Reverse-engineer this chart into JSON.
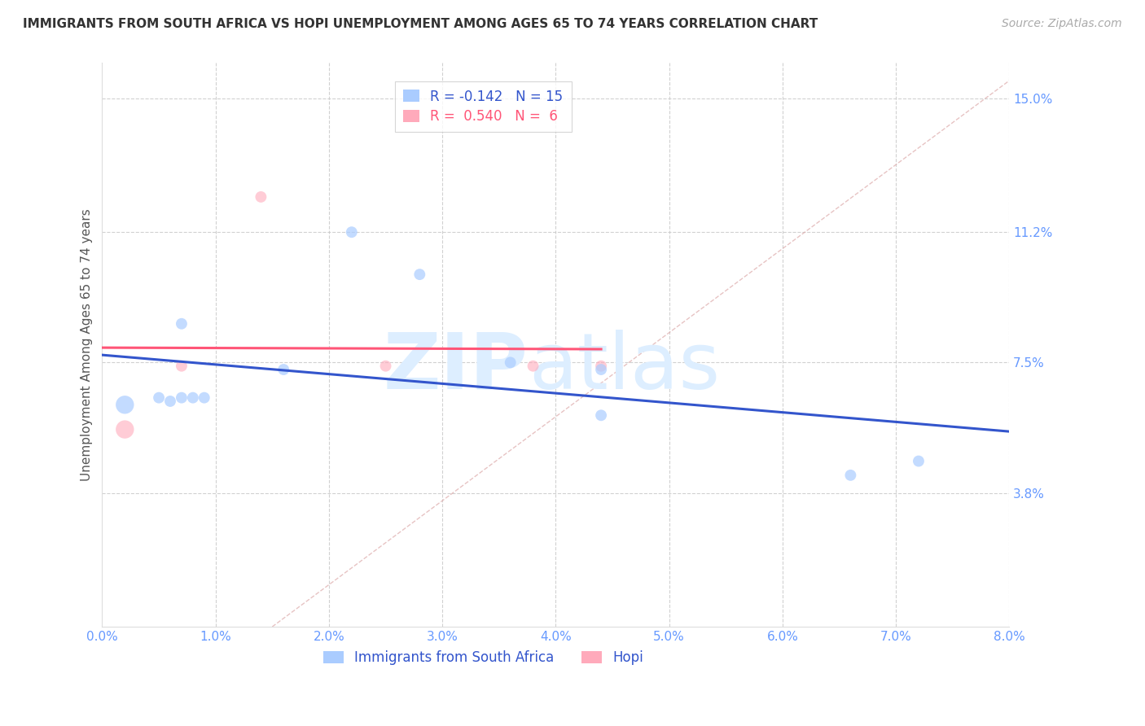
{
  "title": "IMMIGRANTS FROM SOUTH AFRICA VS HOPI UNEMPLOYMENT AMONG AGES 65 TO 74 YEARS CORRELATION CHART",
  "source": "Source: ZipAtlas.com",
  "ylabel": "Unemployment Among Ages 65 to 74 years",
  "xlim": [
    0.0,
    0.08
  ],
  "ylim": [
    0.0,
    0.16
  ],
  "xtick_labels": [
    "0.0%",
    "1.0%",
    "2.0%",
    "3.0%",
    "4.0%",
    "5.0%",
    "6.0%",
    "7.0%",
    "8.0%"
  ],
  "xtick_vals": [
    0.0,
    0.01,
    0.02,
    0.03,
    0.04,
    0.05,
    0.06,
    0.07,
    0.08
  ],
  "ytick_labels_right": [
    "15.0%",
    "11.2%",
    "7.5%",
    "3.8%"
  ],
  "ytick_vals_right": [
    0.15,
    0.112,
    0.075,
    0.038
  ],
  "right_axis_color": "#6699ff",
  "blue_points_x": [
    0.002,
    0.005,
    0.006,
    0.007,
    0.007,
    0.008,
    0.009,
    0.016,
    0.022,
    0.028,
    0.036,
    0.044,
    0.044,
    0.066,
    0.072
  ],
  "blue_points_y": [
    0.063,
    0.065,
    0.064,
    0.086,
    0.065,
    0.065,
    0.065,
    0.073,
    0.112,
    0.1,
    0.075,
    0.073,
    0.06,
    0.043,
    0.047
  ],
  "pink_points_x": [
    0.002,
    0.007,
    0.014,
    0.025,
    0.038,
    0.044
  ],
  "pink_points_y": [
    0.056,
    0.074,
    0.122,
    0.074,
    0.074,
    0.074
  ],
  "blue_color": "#aaccff",
  "pink_color": "#ffaabb",
  "blue_line_color": "#3355cc",
  "pink_line_color": "#ff5577",
  "diagonal_line_color": "#cccccc",
  "legend_r_blue": "R = -0.142",
  "legend_n_blue": "N = 15",
  "legend_r_pink": "R =  0.540",
  "legend_n_pink": "N =  6",
  "legend_label_blue": "Immigrants from South Africa",
  "legend_label_pink": "Hopi",
  "background_color": "#ffffff",
  "grid_color": "#cccccc",
  "title_color": "#333333",
  "watermark_zip": "ZIP",
  "watermark_atlas": "atlas",
  "watermark_color": "#ddeeff",
  "point_size": 100,
  "large_point_size": 260
}
